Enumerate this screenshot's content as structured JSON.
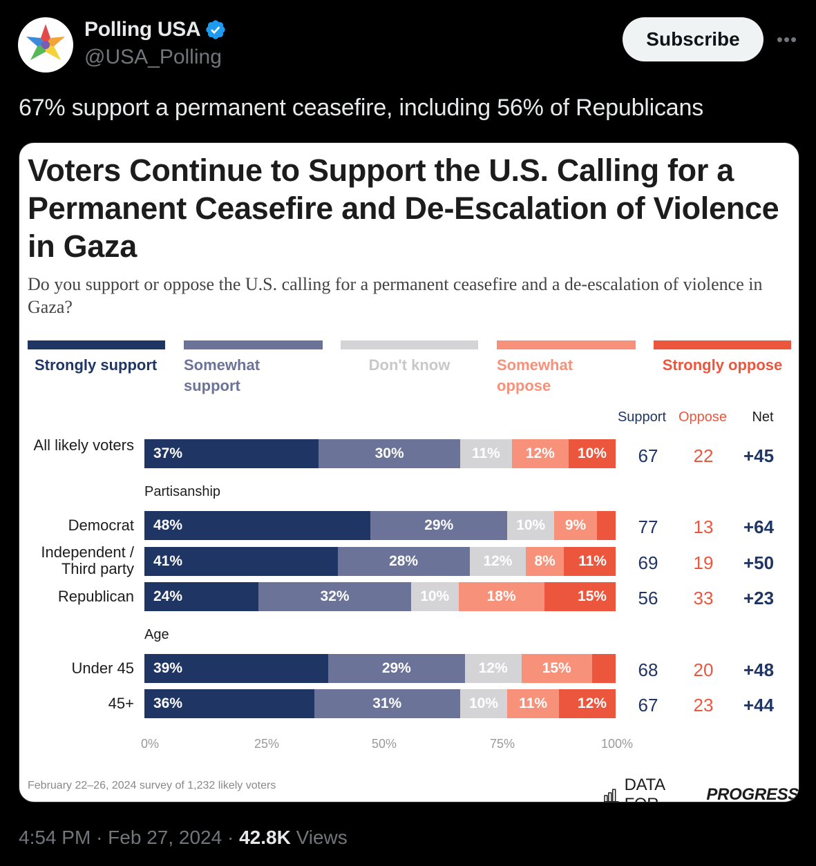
{
  "colors": {
    "strongly_support": "#1f3564",
    "somewhat_support": "#6b7399",
    "dont_know": "#d4d4d6",
    "somewhat_oppose": "#f8917a",
    "strongly_oppose": "#ec563d",
    "verified": "#1d9bf0"
  },
  "author": {
    "display_name": "Polling USA",
    "handle": "@USA_Polling",
    "avatar_icon": "polling-usa-star-logo-icon",
    "verified_icon": "verified-badge-icon"
  },
  "actions": {
    "subscribe_label": "Subscribe",
    "more_label": "•••"
  },
  "tweet": {
    "text": "67% support a permanent ceasefire, including 56% of Republicans"
  },
  "card": {
    "title": "Voters Continue to Support the U.S. Calling for a Permanent Ceasefire and De-Escalation of Violence in Gaza",
    "question": "Do you support or oppose the U.S. calling for a permanent ceasefire and a de-escalation of violence in Gaza?",
    "footnote": "February 22–26, 2024 survey of 1,232 likely voters",
    "brand_part1": "DATA FOR",
    "brand_part2": "PROGRESS"
  },
  "chart_data": {
    "type": "bar",
    "stacked": true,
    "orientation": "horizontal",
    "legend": [
      {
        "label": "Strongly support",
        "color": "#1f3564"
      },
      {
        "label": "Somewhat support",
        "color": "#6b7399"
      },
      {
        "label": "Don't know",
        "color": "#d4d4d6"
      },
      {
        "label": "Somewhat oppose",
        "color": "#f8917a"
      },
      {
        "label": "Strongly oppose",
        "color": "#ec563d"
      }
    ],
    "column_headers": {
      "support": "Support",
      "oppose": "Oppose",
      "net": "Net"
    },
    "sections": [
      {
        "label": "",
        "rows": [
          {
            "label": "All likely voters",
            "values": [
              37,
              30,
              11,
              12,
              10
            ],
            "value_labels": [
              "37%",
              "30%",
              "11%",
              "12%",
              "10%"
            ],
            "support": "67",
            "oppose": "22",
            "net": "+45"
          }
        ]
      },
      {
        "label": "Partisanship",
        "rows": [
          {
            "label": "Democrat",
            "values": [
              48,
              29,
              10,
              9,
              4
            ],
            "value_labels": [
              "48%",
              "29%",
              "10%",
              "9%",
              ""
            ],
            "support": "77",
            "oppose": "13",
            "net": "+64"
          },
          {
            "label": "Independent / Third party",
            "values": [
              41,
              28,
              12,
              8,
              11
            ],
            "value_labels": [
              "41%",
              "28%",
              "12%",
              "8%",
              "11%"
            ],
            "support": "69",
            "oppose": "19",
            "net": "+50"
          },
          {
            "label": "Republican",
            "values": [
              24,
              32,
              10,
              18,
              15
            ],
            "value_labels": [
              "24%",
              "32%",
              "10%",
              "18%",
              "15%"
            ],
            "support": "56",
            "oppose": "33",
            "net": "+23"
          }
        ]
      },
      {
        "label": "Age",
        "rows": [
          {
            "label": "Under 45",
            "values": [
              39,
              29,
              12,
              15,
              5
            ],
            "value_labels": [
              "39%",
              "29%",
              "12%",
              "15%",
              ""
            ],
            "support": "68",
            "oppose": "20",
            "net": "+48"
          },
          {
            "label": "45+",
            "values": [
              36,
              31,
              10,
              11,
              12
            ],
            "value_labels": [
              "36%",
              "31%",
              "10%",
              "11%",
              "12%"
            ],
            "support": "67",
            "oppose": "23",
            "net": "+44"
          }
        ]
      }
    ],
    "x_ticks": [
      "0%",
      "25%",
      "50%",
      "75%",
      "100%"
    ],
    "xlim": [
      0,
      100
    ]
  },
  "meta": {
    "time": "4:54 PM",
    "separator1": "·",
    "date": "Feb 27, 2024",
    "separator2": "·",
    "views_count": "42.8K",
    "views_label": "Views"
  }
}
